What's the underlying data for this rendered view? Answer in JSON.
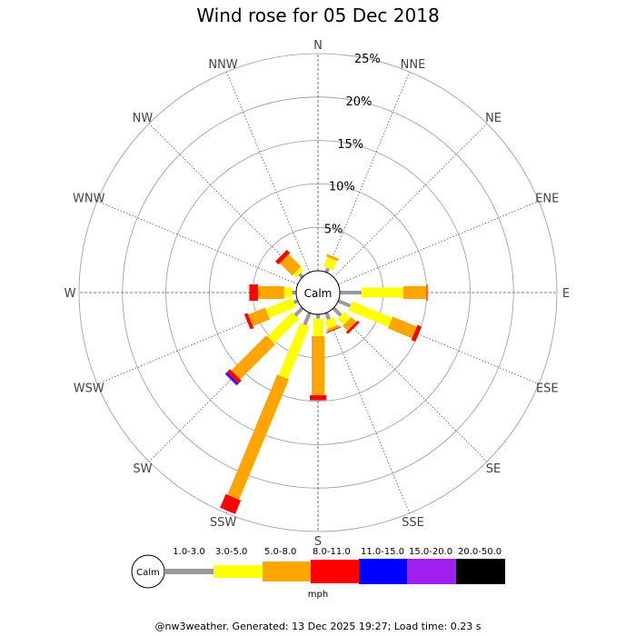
{
  "chart_data": {
    "type": "wind-rose",
    "title": "Wind rose for 05 Dec 2018",
    "unit": "mph",
    "calm_label": "Calm",
    "rlim": [
      0,
      25
    ],
    "ring_values": [
      5,
      10,
      15,
      20,
      25
    ],
    "ring_labels": [
      "5%",
      "10%",
      "15%",
      "20%",
      "25%"
    ],
    "directions": [
      "N",
      "NNE",
      "NE",
      "ENE",
      "E",
      "ESE",
      "SE",
      "SSE",
      "S",
      "SSW",
      "SW",
      "WSW",
      "W",
      "WNW",
      "NW",
      "NNW"
    ],
    "speed_bins": [
      {
        "label": "1.0-3.0",
        "color": "#999999"
      },
      {
        "label": "3.0-5.0",
        "color": "#ffff00"
      },
      {
        "label": "5.0-8.0",
        "color": "#ffa500"
      },
      {
        "label": "8.0-11.0",
        "color": "#ff0000"
      },
      {
        "label": "11.0-15.0",
        "color": "#0000ff"
      },
      {
        "label": "15.0-20.0",
        "color": "#a020f0"
      },
      {
        "label": "20.0-50.0",
        "color": "#000000"
      }
    ],
    "frequencies": [
      [
        0,
        0,
        0,
        0,
        0,
        0,
        0
      ],
      [
        0.5,
        1.2,
        0.3,
        0,
        0,
        0,
        0
      ],
      [
        0,
        0,
        0,
        0,
        0,
        0,
        0
      ],
      [
        0,
        0,
        0,
        0,
        0,
        0,
        0
      ],
      [
        2.5,
        4.8,
        2.7,
        0.1,
        0,
        0,
        0
      ],
      [
        1.5,
        5.0,
        3.0,
        0.5,
        0,
        0,
        0
      ],
      [
        1.2,
        1.0,
        0.8,
        0.3,
        0,
        0,
        0
      ],
      [
        0.8,
        1.0,
        0.3,
        0.1,
        0,
        0,
        0
      ],
      [
        0.5,
        2.0,
        6.8,
        0.6,
        0,
        0,
        0
      ],
      [
        1.5,
        6.5,
        15.0,
        1.7,
        0,
        0,
        0
      ],
      [
        1.2,
        4.0,
        5.7,
        0.5,
        0.2,
        0.1,
        0
      ],
      [
        0.5,
        3.3,
        2.1,
        0.4,
        0,
        0,
        0
      ],
      [
        0.5,
        0.9,
        3.0,
        1.0,
        0,
        0,
        0
      ],
      [
        0,
        0,
        0,
        0,
        0,
        0,
        0
      ],
      [
        0.5,
        0.5,
        2.0,
        0.5,
        0,
        0,
        0
      ],
      [
        0,
        0,
        0,
        0,
        0,
        0,
        0
      ]
    ]
  },
  "footer": "@nw3weather. Generated: 13 Dec 2025 19:27; Load time: 0.23 s",
  "colors": {
    "grid": "#888888",
    "axis_line": "#555555",
    "label": "#444444"
  }
}
